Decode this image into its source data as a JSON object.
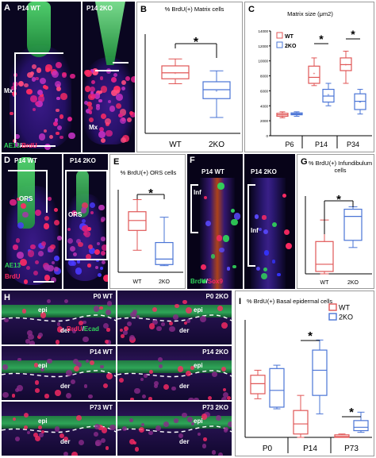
{
  "panels": {
    "A": {
      "letter": "A",
      "labels": [
        "P14 WT",
        "P14 2KO"
      ],
      "region": "Mx",
      "stain": {
        "marker1": "AE13",
        "sep": "/",
        "marker2": "BrdU"
      }
    },
    "D": {
      "letter": "D",
      "labels": [
        "P14 WT",
        "P14 2KO"
      ],
      "region": "ORS",
      "stain": {
        "marker1": "AE13",
        "marker2": "BrdU"
      }
    },
    "F": {
      "letter": "F",
      "labels": [
        "P14 WT",
        "P14 2KO"
      ],
      "region": "Inf",
      "stain": {
        "marker1": "BrdU",
        "sep": "/",
        "marker2": "Sox9"
      }
    },
    "H": {
      "letter": "H",
      "stain": {
        "marker1": "BrdU",
        "sep": "/",
        "marker2": "Ecad"
      },
      "epi": "epi",
      "der": "der",
      "rows": [
        {
          "left": "P0 WT",
          "right": "P0 2KO"
        },
        {
          "left": "P14 WT",
          "right": "P14 2KO"
        },
        {
          "left": "P73 WT",
          "right": "P73 2KO"
        }
      ]
    }
  },
  "colors": {
    "wt": "#e05656",
    "ko": "#4a74d6",
    "green": "#31d65a",
    "red": "#ff2a64",
    "blue": "#3434ff"
  },
  "chart_data": [
    {
      "id": "B",
      "type": "boxplot",
      "letter": "B",
      "title": "% BrdU(+) Matrix cells",
      "categories": [
        "WT",
        "2KO"
      ],
      "series": [
        {
          "min": 50,
          "q1": 55,
          "median": 61,
          "q3": 68,
          "max": 75,
          "mean": 61
        },
        {
          "min": 16,
          "q1": 35,
          "median": 44,
          "q3": 52,
          "max": 63,
          "mean": 43
        }
      ],
      "ylim": [
        0,
        100
      ],
      "significance": {
        "between": [
          0,
          1
        ],
        "label": "*"
      }
    },
    {
      "id": "C",
      "type": "boxplot",
      "letter": "C",
      "title": "Matrix size (μm2)",
      "categories": [
        "P6",
        "P14",
        "P34"
      ],
      "legend": [
        "WT",
        "2KO"
      ],
      "yticks": [
        "0",
        "2000",
        "4000",
        "6000",
        "8000",
        "10000",
        "12000",
        "14000"
      ],
      "ylim": [
        0,
        14000
      ],
      "series": [
        {
          "name": "WT",
          "values": [
            {
              "min": 2400,
              "q1": 2600,
              "median": 2800,
              "q3": 3000,
              "max": 3200,
              "mean": 2800
            },
            {
              "min": 6700,
              "q1": 7000,
              "median": 7800,
              "q3": 9300,
              "max": 10400,
              "mean": 8300
            },
            {
              "min": 7000,
              "q1": 8700,
              "median": 9500,
              "q3": 10400,
              "max": 11300,
              "mean": 9500
            }
          ]
        },
        {
          "name": "2KO",
          "values": [
            {
              "min": 2600,
              "q1": 2800,
              "median": 2900,
              "q3": 3050,
              "max": 3200,
              "mean": 2900
            },
            {
              "min": 4000,
              "q1": 4500,
              "median": 5300,
              "q3": 6200,
              "max": 7000,
              "mean": 5500
            },
            {
              "min": 2900,
              "q1": 3500,
              "median": 4600,
              "q3": 5600,
              "max": 6200,
              "mean": 4500
            }
          ]
        }
      ],
      "significance": [
        {
          "category": 1,
          "label": "*"
        },
        {
          "category": 2,
          "label": "*"
        }
      ]
    },
    {
      "id": "E",
      "type": "boxplot",
      "letter": "E",
      "title": "% BrdU(+) ORS cells",
      "categories": [
        "WT",
        "2KO"
      ],
      "series": [
        {
          "min": 20,
          "q1": 38,
          "median": 47,
          "q3": 55,
          "max": 66
        },
        {
          "min": 6,
          "q1": 7,
          "median": 12,
          "q3": 27,
          "max": 50
        }
      ],
      "ylim": [
        0,
        75
      ],
      "significance": {
        "between": [
          0,
          1
        ],
        "label": "*"
      }
    },
    {
      "id": "G",
      "type": "boxplot",
      "letter": "G",
      "title": "% BrdU(+) Infundibulum cells",
      "categories": [
        "WT",
        "2KO"
      ],
      "series": [
        {
          "min": 0,
          "q1": 2,
          "median": 8,
          "q3": 27,
          "max": 45
        },
        {
          "min": 22,
          "q1": 28,
          "median": 48,
          "q3": 54,
          "max": 56
        }
      ],
      "ylim": [
        0,
        65
      ],
      "significance": {
        "between": [
          0,
          1
        ],
        "label": "*"
      }
    },
    {
      "id": "I",
      "type": "boxplot",
      "letter": "I",
      "title": "% BrdU(+) Basal epidermal cells",
      "categories": [
        "P0",
        "P14",
        "P73"
      ],
      "legend": [
        "WT",
        "2KO"
      ],
      "ylim": [
        0,
        70
      ],
      "series": [
        {
          "name": "WT",
          "values": [
            {
              "min": 23,
              "q1": 26,
              "median": 32,
              "q3": 37,
              "max": 40
            },
            {
              "min": 0,
              "q1": 2,
              "median": 8,
              "q3": 16,
              "max": 25
            },
            {
              "min": 0,
              "q1": 0,
              "median": 0.5,
              "q3": 1.5,
              "max": 2
            }
          ]
        },
        {
          "name": "2KO",
          "values": [
            {
              "min": 17,
              "q1": 18,
              "median": 28,
              "q3": 41,
              "max": 43
            },
            {
              "min": 14,
              "q1": 25,
              "median": 40,
              "q3": 52,
              "max": 58
            },
            {
              "min": 3,
              "q1": 4,
              "median": 6,
              "q3": 10,
              "max": 15
            }
          ]
        }
      ],
      "significance": [
        {
          "category": 1,
          "label": "*"
        },
        {
          "category": 2,
          "label": "*"
        }
      ]
    }
  ]
}
